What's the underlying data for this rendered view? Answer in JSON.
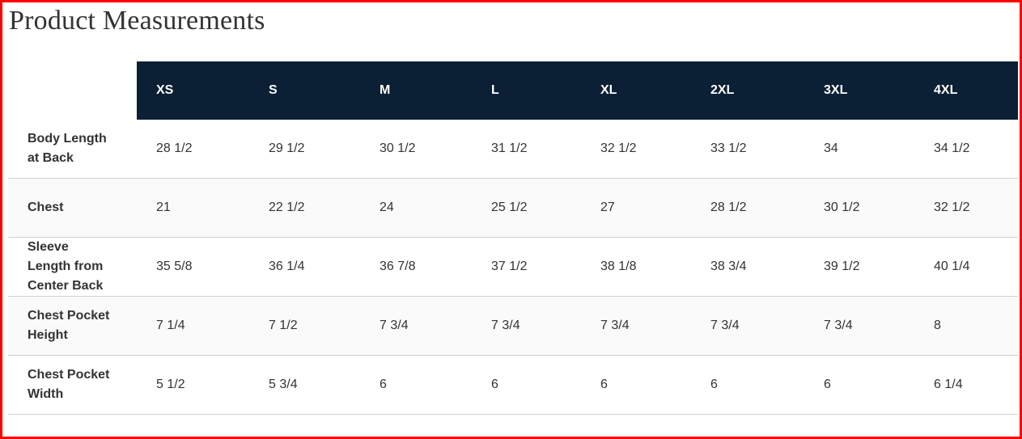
{
  "title": "Product Measurements",
  "sizes": [
    "XS",
    "S",
    "M",
    "L",
    "XL",
    "2XL",
    "3XL",
    "4XL"
  ],
  "rows": [
    {
      "label": "Body Length at Back",
      "values": [
        "28 1/2",
        "29 1/2",
        "30 1/2",
        "31 1/2",
        "32 1/2",
        "33 1/2",
        "34",
        "34 1/2"
      ]
    },
    {
      "label": "Chest",
      "values": [
        "21",
        "22 1/2",
        "24",
        "25 1/2",
        "27",
        "28 1/2",
        "30 1/2",
        "32 1/2"
      ]
    },
    {
      "label": "Sleeve Length from Center Back",
      "values": [
        "35 5/8",
        "36 1/4",
        "36 7/8",
        "37 1/2",
        "38 1/8",
        "38 3/4",
        "39 1/2",
        "40 1/4"
      ]
    },
    {
      "label": "Chest Pocket Height",
      "values": [
        "7 1/4",
        "7 1/2",
        "7 3/4",
        "7 3/4",
        "7 3/4",
        "7 3/4",
        "7 3/4",
        "8"
      ]
    },
    {
      "label": "Chest Pocket Width",
      "values": [
        "5 1/2",
        "5 3/4",
        "6",
        "6",
        "6",
        "6",
        "6",
        "6 1/4"
      ]
    }
  ],
  "colors": {
    "header_bg": "#0b2035",
    "frame": "#ff0000"
  }
}
